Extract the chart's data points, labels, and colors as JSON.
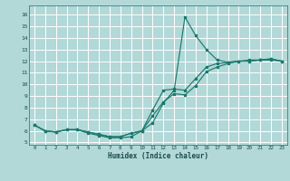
{
  "xlabel": "Humidex (Indice chaleur)",
  "bg_color": "#b2d8d8",
  "grid_color": "#ffffff",
  "line_color": "#1a7a6e",
  "xlim": [
    -0.5,
    23.5
  ],
  "ylim": [
    4.8,
    16.8
  ],
  "xticks": [
    0,
    1,
    2,
    3,
    4,
    5,
    6,
    7,
    8,
    9,
    10,
    11,
    12,
    13,
    14,
    15,
    16,
    17,
    18,
    19,
    20,
    21,
    22,
    23
  ],
  "yticks": [
    5,
    6,
    7,
    8,
    9,
    10,
    11,
    12,
    13,
    14,
    15,
    16
  ],
  "line1_x": [
    0,
    1,
    2,
    3,
    4,
    5,
    6,
    7,
    8,
    9,
    10,
    11,
    12,
    13,
    14,
    15,
    16,
    17,
    18,
    19,
    20,
    21,
    22,
    23
  ],
  "line1_y": [
    6.5,
    6.0,
    5.9,
    6.1,
    6.1,
    5.8,
    5.6,
    5.4,
    5.4,
    5.5,
    6.0,
    6.7,
    8.4,
    9.5,
    15.8,
    14.2,
    13.0,
    12.1,
    11.9,
    12.0,
    12.0,
    12.1,
    12.2,
    12.0
  ],
  "line2_x": [
    0,
    1,
    2,
    3,
    4,
    5,
    6,
    7,
    8,
    9,
    10,
    11,
    12,
    13,
    14,
    15,
    16,
    17,
    18,
    19,
    20,
    21,
    22,
    23
  ],
  "line2_y": [
    6.5,
    6.0,
    5.9,
    6.1,
    6.1,
    5.9,
    5.7,
    5.5,
    5.5,
    5.8,
    6.0,
    7.8,
    9.5,
    9.6,
    9.5,
    10.5,
    11.5,
    11.8,
    11.9,
    12.0,
    12.1,
    12.1,
    12.2,
    12.0
  ],
  "line3_x": [
    0,
    1,
    2,
    3,
    4,
    5,
    6,
    7,
    8,
    9,
    10,
    11,
    12,
    13,
    14,
    15,
    16,
    17,
    18,
    19,
    20,
    21,
    22,
    23
  ],
  "line3_y": [
    6.5,
    6.0,
    5.9,
    6.1,
    6.1,
    5.9,
    5.7,
    5.5,
    5.5,
    5.8,
    6.0,
    7.3,
    8.5,
    9.2,
    9.1,
    9.9,
    11.1,
    11.5,
    11.8,
    12.0,
    12.0,
    12.1,
    12.1,
    12.0
  ]
}
